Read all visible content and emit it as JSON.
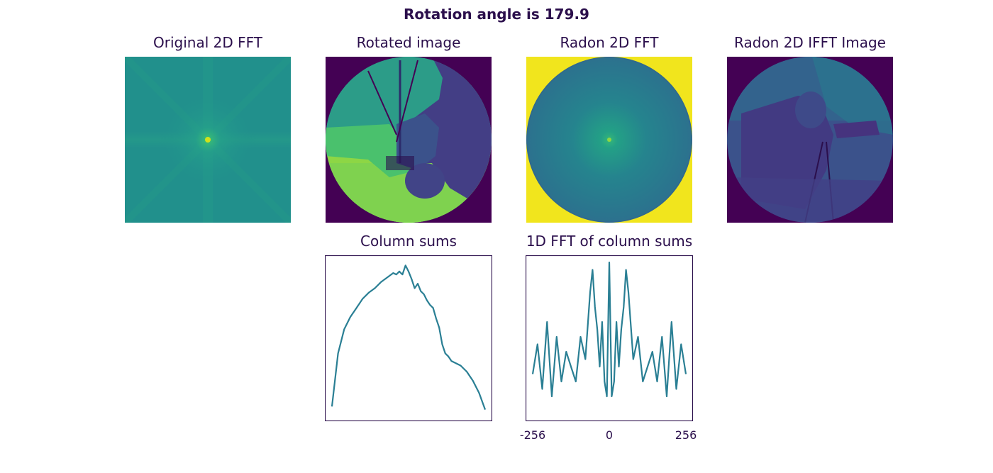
{
  "figure": {
    "suptitle": "Rotation angle is 179.9"
  },
  "panels": {
    "original_fft": {
      "title": "Original 2D FFT"
    },
    "rotated_image": {
      "title": "Rotated image"
    },
    "radon_fft": {
      "title": "Radon 2D FFT"
    },
    "radon_ifft": {
      "title": "Radon 2D IFFT Image"
    }
  },
  "colors": {
    "viridis_dark": "#440154",
    "viridis_blue": "#31688e",
    "viridis_teal": "#21918c",
    "viridis_green": "#35b779",
    "viridis_lightgreen": "#90d743",
    "viridis_yellow": "#fde725",
    "line_color": "#2a7f94",
    "text_color": "#2b0f4c"
  },
  "chart_data": [
    {
      "type": "line",
      "title": "Column sums",
      "xlabel": "",
      "ylabel": "",
      "series": [
        {
          "x": [
            0,
            10,
            20,
            30,
            40,
            50,
            60,
            70,
            80,
            90,
            100,
            105,
            110,
            115,
            120,
            125,
            130,
            135,
            140,
            145,
            150,
            155,
            160,
            165,
            170,
            175,
            180,
            185,
            190,
            195,
            200,
            205,
            210,
            220,
            230,
            240,
            250
          ],
          "values": [
            5,
            40,
            56,
            64,
            70,
            76,
            80,
            83,
            87,
            90,
            93,
            92,
            94,
            92,
            98,
            94,
            89,
            83,
            86,
            81,
            79,
            75,
            72,
            70,
            63,
            57,
            46,
            40,
            38,
            35,
            34,
            33,
            32,
            28,
            22,
            14,
            3
          ]
        }
      ],
      "grid": false,
      "ticks_visible": false
    },
    {
      "type": "line",
      "title": "1D FFT of column sums",
      "xlabel": "",
      "ylabel": "",
      "xticks": [
        "-256",
        "0",
        "256"
      ],
      "xlim": [
        -256,
        256
      ],
      "series": [
        {
          "x": [
            -256,
            -240,
            -224,
            -208,
            -192,
            -176,
            -160,
            -144,
            -128,
            -112,
            -96,
            -80,
            -64,
            -56,
            -48,
            -40,
            -32,
            -24,
            -16,
            -8,
            0,
            8,
            16,
            24,
            32,
            40,
            48,
            56,
            64,
            80,
            96,
            112,
            128,
            144,
            160,
            176,
            192,
            208,
            224,
            240,
            256
          ],
          "values": [
            0.25,
            0.45,
            0.15,
            0.6,
            0.1,
            0.5,
            0.2,
            0.4,
            0.3,
            0.2,
            0.5,
            0.35,
            0.8,
            0.95,
            0.7,
            0.55,
            0.3,
            0.6,
            0.2,
            0.1,
            1.0,
            0.1,
            0.2,
            0.6,
            0.3,
            0.55,
            0.7,
            0.95,
            0.8,
            0.35,
            0.5,
            0.2,
            0.3,
            0.4,
            0.2,
            0.5,
            0.1,
            0.6,
            0.15,
            0.45,
            0.25
          ]
        }
      ],
      "grid": false
    }
  ]
}
